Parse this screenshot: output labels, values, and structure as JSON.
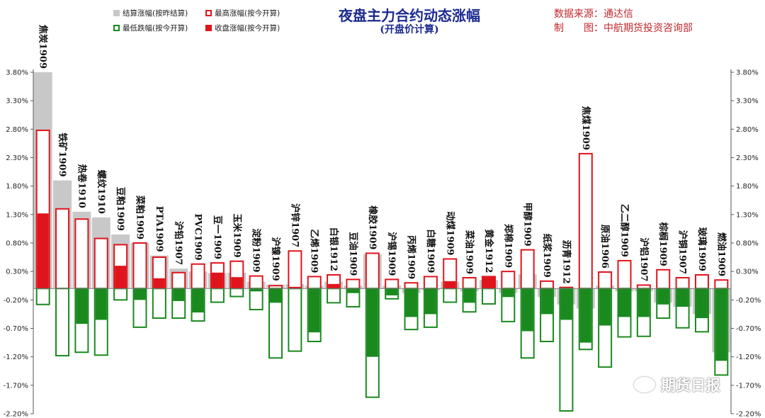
{
  "header": {
    "title": "夜盘主力合约动态涨幅",
    "subtitle": "(开盘价计算)",
    "source_line": "数据来源：通达信",
    "maker_line": "制　　图：中航期货投资咨询部"
  },
  "legend": {
    "settle": "结算涨幅(按昨结算)",
    "high": "最高涨幅(按今开算)",
    "low": "最低跌幅(按今开算)",
    "close": "收盘涨幅(按今开算)"
  },
  "watermark": "期货日报",
  "colors": {
    "settle": "#c8c8c8",
    "high": "#e0141c",
    "low": "#1a8a1f",
    "close": "#e0141c"
  },
  "chart_data": {
    "type": "bar",
    "ylim": [
      -2.2,
      3.8
    ],
    "y_ticks": [
      "3.80%",
      "3.30%",
      "2.80%",
      "2.30%",
      "1.80%",
      "1.30%",
      "0.80%",
      "0.30%",
      "-0.20%",
      "-0.70%",
      "-1.20%",
      "-1.70%",
      "-2.20%"
    ],
    "categories": [
      "焦炭1909",
      "铁矿1909",
      "热卷1910",
      "螺纹1910",
      "豆粕1909",
      "菜粕1909",
      "PTA1909",
      "沪铅1907",
      "PVC1909",
      "豆一1909",
      "玉米1909",
      "淀粉1909",
      "沪镍1909",
      "沪锌1907",
      "乙烯1909",
      "白银1912",
      "豆油1909",
      "橡胶1909",
      "沪锡1909",
      "丙烯1909",
      "白糖1909",
      "动煤1909",
      "菜油1909",
      "黄金1912",
      "郑棉1909",
      "甲醇1909",
      "纸浆1909",
      "沥青1912",
      "焦煤1909",
      "原油1906",
      "乙二醇1909",
      "沪铝1907",
      "棕榈1909",
      "沪铜1907",
      "玻璃1909",
      "燃油1909"
    ],
    "series": [
      {
        "name": "结算涨幅(按昨结算)",
        "values": [
          3.8,
          1.9,
          1.35,
          1.25,
          0.95,
          0.8,
          0.58,
          0.35,
          0.3,
          0.27,
          0.28,
          0.12,
          0.07,
          0.08,
          0.05,
          0.12,
          0.05,
          0.6,
          0.05,
          -0.08,
          -0.03,
          0.12,
          -0.05,
          0.15,
          -0.08,
          0.25,
          -0.15,
          -0.28,
          -0.35,
          0.05,
          -0.05,
          -0.05,
          -0.25,
          -0.32,
          -0.45,
          -1.12
        ]
      },
      {
        "name": "最高涨幅(按今开算)",
        "values": [
          2.78,
          1.4,
          1.22,
          0.88,
          0.77,
          0.8,
          0.55,
          0.28,
          0.43,
          0.45,
          0.48,
          0.22,
          0.05,
          0.66,
          0.21,
          0.24,
          0.16,
          0.62,
          0.16,
          0.1,
          0.21,
          0.52,
          0.19,
          0.21,
          0.3,
          0.68,
          0.13,
          0.02,
          2.37,
          0.29,
          0.49,
          0.06,
          0.33,
          0.19,
          0.24,
          0.15
        ]
      },
      {
        "name": "最低跌幅(按今开算)",
        "values": [
          -0.28,
          -1.18,
          -1.12,
          -1.17,
          -0.2,
          -0.68,
          -0.52,
          -0.52,
          -0.57,
          -0.24,
          -0.14,
          -0.37,
          -1.22,
          -1.1,
          -0.93,
          -0.25,
          -0.32,
          -1.91,
          -0.18,
          -0.72,
          -0.68,
          -0.24,
          -0.41,
          -0.27,
          -0.58,
          -1.22,
          -0.93,
          -2.15,
          -1.07,
          -1.38,
          -0.85,
          -0.84,
          -0.52,
          -0.69,
          -0.76,
          -1.52
        ]
      },
      {
        "name": "收盘涨幅(按今开算)",
        "values": [
          1.32,
          0,
          -0.62,
          -0.55,
          0.4,
          -0.2,
          0.18,
          -0.22,
          -0.42,
          0.28,
          0.2,
          -0.05,
          -0.25,
          0.03,
          -0.77,
          0.08,
          -0.08,
          -1.2,
          -0.12,
          -0.5,
          -0.45,
          0.13,
          -0.25,
          0.2,
          -0.15,
          -0.75,
          -0.45,
          -0.55,
          -0.95,
          -0.65,
          -0.5,
          -0.5,
          -0.28,
          -0.32,
          -0.52,
          -1.27
        ]
      }
    ]
  }
}
